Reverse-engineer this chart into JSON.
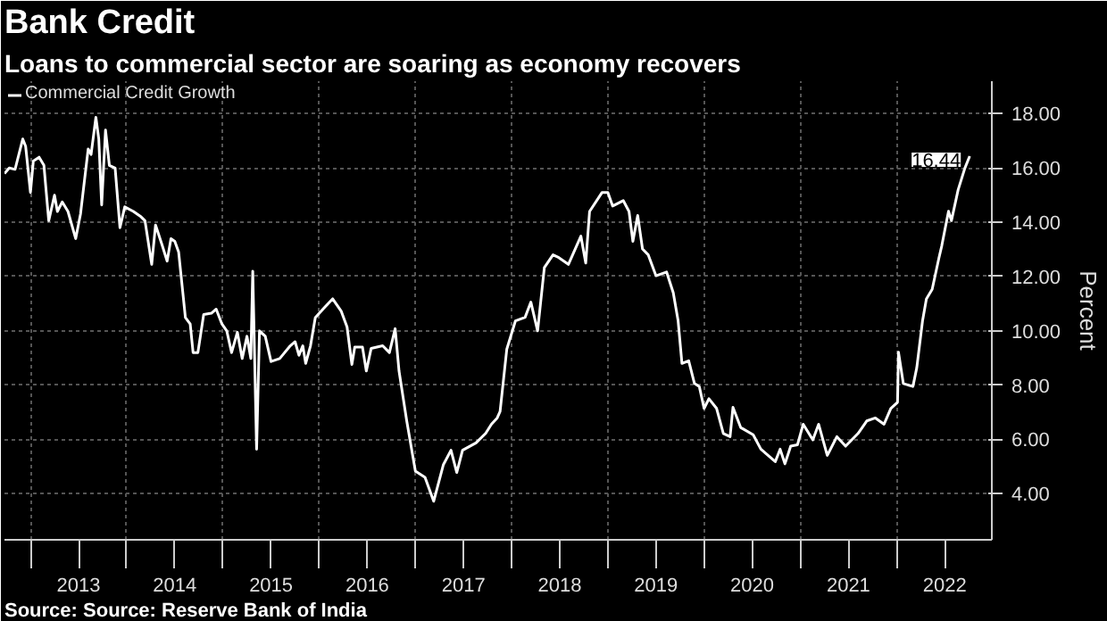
{
  "chart_data": {
    "type": "line",
    "title": "Bank Credit",
    "subtitle": "Loans to commercial sector are soaring as economy recovers",
    "ylabel": "Percent",
    "annotations": [
      "Source: Source: Reserve Bank of India",
      {
        "text": "16.44",
        "x": 2022.76,
        "y": 16.44
      }
    ],
    "legend": "top left",
    "grid": true,
    "xlim": [
      2012.73,
      2022.99
    ],
    "xticks": [
      {
        "value": 2013,
        "label": null
      },
      {
        "value": 2013.5,
        "label": "2013"
      },
      {
        "value": 2014,
        "label": null
      },
      {
        "value": 2014.5,
        "label": "2014"
      },
      {
        "value": 2015,
        "label": null
      },
      {
        "value": 2015.5,
        "label": "2015"
      },
      {
        "value": 2016,
        "label": null
      },
      {
        "value": 2016.5,
        "label": "2016"
      },
      {
        "value": 2017,
        "label": null
      },
      {
        "value": 2017.5,
        "label": "2017"
      },
      {
        "value": 2018,
        "label": null
      },
      {
        "value": 2018.5,
        "label": "2018"
      },
      {
        "value": 2019,
        "label": null
      },
      {
        "value": 2019.5,
        "label": "2019"
      },
      {
        "value": 2020,
        "label": null
      },
      {
        "value": 2020.5,
        "label": "2020"
      },
      {
        "value": 2021,
        "label": null
      },
      {
        "value": 2021.5,
        "label": "2021"
      },
      {
        "value": 2022,
        "label": null
      },
      {
        "value": 2022.5,
        "label": "2022"
      }
    ],
    "ylim": [
      2.3,
      19.2
    ],
    "yticks": [
      {
        "value": 4,
        "label": "4.00"
      },
      {
        "value": 6,
        "label": "6.00"
      },
      {
        "value": 8,
        "label": "8.00"
      },
      {
        "value": 10,
        "label": "10.00"
      },
      {
        "value": 12,
        "label": "12.00"
      },
      {
        "value": 14,
        "label": "14.00"
      },
      {
        "value": 16,
        "label": "16.00"
      },
      {
        "value": 18,
        "label": "18.00"
      }
    ],
    "series": [
      {
        "name": "Commercial Credit Growth",
        "color": "#ffffff",
        "x": [
          2012.73,
          2012.78,
          2012.84,
          2012.92,
          2012.95,
          2013.0,
          2013.03,
          2013.09,
          2013.14,
          2013.19,
          2013.25,
          2013.28,
          2013.33,
          2013.39,
          2013.47,
          2013.52,
          2013.6,
          2013.63,
          2013.68,
          2013.71,
          2013.74,
          2013.78,
          2013.82,
          2013.88,
          2013.93,
          2013.98,
          2014.07,
          2014.15,
          2014.19,
          2014.26,
          2014.3,
          2014.37,
          2014.42,
          2014.46,
          2014.5,
          2014.54,
          2014.61,
          2014.66,
          2014.69,
          2014.74,
          2014.8,
          2014.88,
          2014.93,
          2014.99,
          2015.04,
          2015.09,
          2015.15,
          2015.2,
          2015.25,
          2015.29,
          2015.31,
          2015.35,
          2015.38,
          2015.44,
          2015.5,
          2015.59,
          2015.7,
          2015.75,
          2015.79,
          2015.83,
          2015.86,
          2015.91,
          2015.96,
          2016.05,
          2016.14,
          2016.23,
          2016.29,
          2016.34,
          2016.37,
          2016.45,
          2016.49,
          2016.54,
          2016.66,
          2016.73,
          2016.79,
          2016.83,
          2016.91,
          2017.0,
          2017.1,
          2017.19,
          2017.29,
          2017.37,
          2017.43,
          2017.49,
          2017.63,
          2017.73,
          2017.79,
          2017.85,
          2017.88,
          2017.95,
          2018.04,
          2018.14,
          2018.2,
          2018.27,
          2018.34,
          2018.43,
          2018.49,
          2018.59,
          2018.72,
          2018.77,
          2018.81,
          2018.94,
          2019.0,
          2019.05,
          2019.16,
          2019.22,
          2019.26,
          2019.31,
          2019.36,
          2019.42,
          2019.5,
          2019.61,
          2019.68,
          2019.73,
          2019.77,
          2019.84,
          2019.9,
          2019.95,
          2020.0,
          2020.05,
          2020.13,
          2020.2,
          2020.27,
          2020.3,
          2020.38,
          2020.51,
          2020.59,
          2020.74,
          2020.79,
          2020.84,
          2020.9,
          2020.97,
          2021.03,
          2021.13,
          2021.19,
          2021.28,
          2021.38,
          2021.47,
          2021.6,
          2021.69,
          2021.78,
          2021.87,
          2021.94,
          2022.01,
          2022.02,
          2022.07,
          2022.17,
          2022.21,
          2022.27,
          2022.31,
          2022.37,
          2022.44,
          2022.47,
          2022.54,
          2022.57,
          2022.64,
          2022.71,
          2022.76
        ],
        "values": [
          15.8,
          16.0,
          15.95,
          17.07,
          16.8,
          15.1,
          16.26,
          16.4,
          16.1,
          14.06,
          15.0,
          14.4,
          14.75,
          14.4,
          13.4,
          14.3,
          16.7,
          16.5,
          17.87,
          17.07,
          14.64,
          17.4,
          16.1,
          16.0,
          13.8,
          14.57,
          14.4,
          14.2,
          14.06,
          12.45,
          13.9,
          13.14,
          12.57,
          13.4,
          13.3,
          12.9,
          10.49,
          10.25,
          9.2,
          9.2,
          10.6,
          10.65,
          10.8,
          10.25,
          10.0,
          9.2,
          9.95,
          8.98,
          9.8,
          8.98,
          12.2,
          5.64,
          10.0,
          9.8,
          8.87,
          8.98,
          9.45,
          9.6,
          9.1,
          9.45,
          8.8,
          9.45,
          10.49,
          10.84,
          11.18,
          10.72,
          10.14,
          8.76,
          9.4,
          9.4,
          8.52,
          9.35,
          9.45,
          9.2,
          10.08,
          8.52,
          6.68,
          4.83,
          4.6,
          3.72,
          5.06,
          5.6,
          4.78,
          5.6,
          5.87,
          6.22,
          6.56,
          6.79,
          7.03,
          9.33,
          10.37,
          10.5,
          11.06,
          10.0,
          12.33,
          12.8,
          12.7,
          12.45,
          13.49,
          12.5,
          14.4,
          15.1,
          15.1,
          14.6,
          14.8,
          14.4,
          13.3,
          14.25,
          13.02,
          12.8,
          12.03,
          12.17,
          11.4,
          10.37,
          8.8,
          8.9,
          8.06,
          7.95,
          7.14,
          7.5,
          7.14,
          6.22,
          6.1,
          7.18,
          6.44,
          6.17,
          5.64,
          5.18,
          5.64,
          5.1,
          5.75,
          5.8,
          6.56,
          5.98,
          6.56,
          5.41,
          6.1,
          5.75,
          6.22,
          6.68,
          6.79,
          6.56,
          7.14,
          7.37,
          9.21,
          8.06,
          7.95,
          8.64,
          10.37,
          11.18,
          11.53,
          12.68,
          13.14,
          14.41,
          14.06,
          15.2,
          16.0,
          16.44
        ]
      }
    ]
  }
}
